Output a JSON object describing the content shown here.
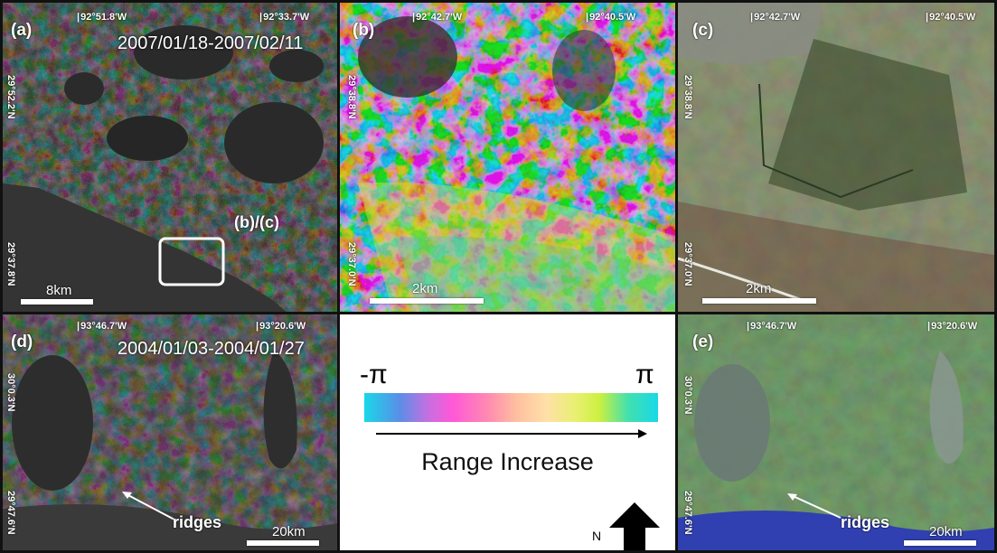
{
  "panels": {
    "a": {
      "label": "(a)",
      "coord_top_left": "92°51.8'W",
      "coord_top_right": "92°33.7'W",
      "coord_left_top": "29°52.2'N",
      "coord_left_bottom": "29°37.8'N",
      "date": "2007/01/18-2007/02/11",
      "box_label": "(b)/(c)",
      "scale": "8km"
    },
    "b": {
      "label": "(b)",
      "coord_top_left": "92°42.7'W",
      "coord_top_right": "92°40.5'W",
      "coord_left_top": "29°38.8'N",
      "coord_left_bottom": "29°37.0'N",
      "scale": "2km"
    },
    "c": {
      "label": "(c)",
      "coord_top_left": "92°42.7'W",
      "coord_top_right": "92°40.5'W",
      "coord_left_top": "29°38.8'N",
      "coord_left_bottom": "29°37.0'N",
      "scale": "2km"
    },
    "d": {
      "label": "(d)",
      "coord_top_left": "93°46.7'W",
      "coord_top_right": "93°20.6'W",
      "coord_left_top": "30°0.3'N",
      "coord_left_bottom": "29°47.6'N",
      "date": "2004/01/03-2004/01/27",
      "ridges": "ridges",
      "scale": "20km"
    },
    "e": {
      "label": "(e)",
      "coord_top_left": "93°46.7'W",
      "coord_top_right": "93°20.6'W",
      "coord_left_top": "30°0.3'N",
      "coord_left_bottom": "29°47.6'N",
      "ridges": "ridges",
      "scale": "20km"
    }
  },
  "legend": {
    "left_symbol": "-π",
    "right_symbol": "π",
    "range_label": "Range Increase",
    "north_label": "N"
  }
}
